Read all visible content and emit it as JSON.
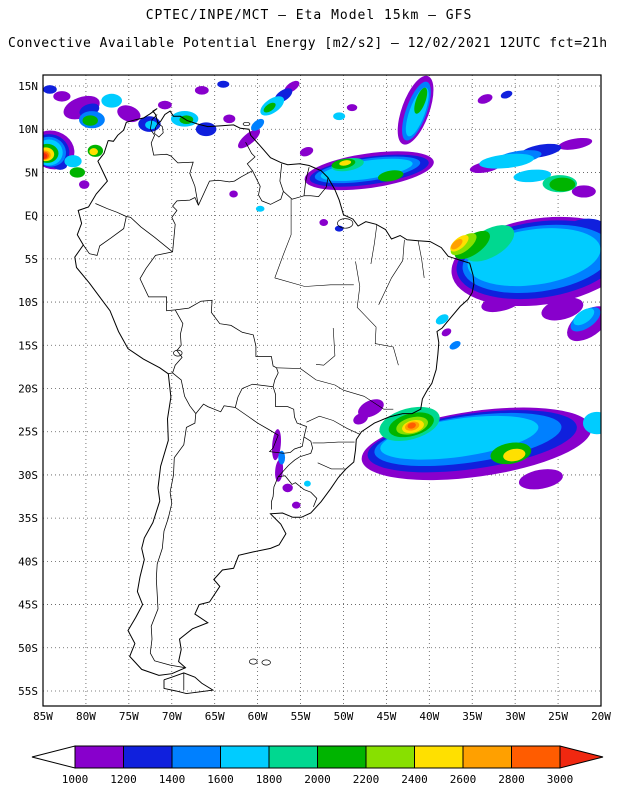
{
  "header": {
    "title": "CPTEC/INPE/MCT —  Eta Model 15km — GFS",
    "subtitle": "Convective Available Potential Energy [m2/s2] — 12/02/2021 12UTC fct=21h"
  },
  "map": {
    "lat_ticks": [
      "15N",
      "10N",
      "5N",
      "EQ",
      "5S",
      "10S",
      "15S",
      "20S",
      "25S",
      "30S",
      "35S",
      "40S",
      "45S",
      "50S",
      "55S"
    ],
    "lon_ticks": [
      "85W",
      "80W",
      "75W",
      "70W",
      "65W",
      "60W",
      "55W",
      "50W",
      "45W",
      "40W",
      "35W",
      "30W",
      "25W",
      "20W"
    ]
  },
  "colorbar": {
    "labels": [
      "1000",
      "1200",
      "1400",
      "1600",
      "1800",
      "2000",
      "2200",
      "2400",
      "2600",
      "2800",
      "3000"
    ],
    "colors": [
      "#8800cc",
      "#1020dd",
      "#0080ff",
      "#00ccff",
      "#00d890",
      "#00b400",
      "#88e000",
      "#ffe000",
      "#ffa000",
      "#ff5c00"
    ],
    "below_min_color": "#ffffff",
    "above_max_color": "#f02810"
  },
  "chart_data": {
    "type": "heatmap",
    "title": "Convective Available Potential Energy",
    "units": "m2/s2",
    "model": "Eta Model 15km — GFS",
    "valid": "12/02/2021 12UTC fct=21h",
    "lon_range": [
      -85,
      -20
    ],
    "lat_range": [
      -55,
      15
    ],
    "scale_values": [
      1000,
      1200,
      1400,
      1600,
      1800,
      2000,
      2200,
      2400,
      2600,
      2800,
      3000
    ],
    "cells_format": "lon,lat,rx_deg,ry_deg,rot_deg,cape_value",
    "cells": [
      [
        -80.5,
        12.5,
        2.2,
        1.2,
        -20,
        1000
      ],
      [
        -79.6,
        12.2,
        1.2,
        0.7,
        -20,
        1200
      ],
      [
        -79.3,
        11.1,
        1.5,
        1.0,
        0,
        1400
      ],
      [
        -79.5,
        11.0,
        0.9,
        0.6,
        0,
        2000
      ],
      [
        -82.8,
        13.8,
        1.0,
        0.6,
        0,
        1000
      ],
      [
        -84.2,
        14.6,
        0.8,
        0.5,
        0,
        1200
      ],
      [
        -77.0,
        13.3,
        1.2,
        0.8,
        0,
        1600
      ],
      [
        -75.0,
        11.8,
        1.4,
        0.9,
        20,
        1000
      ],
      [
        -72.6,
        10.6,
        1.3,
        0.9,
        0,
        1200
      ],
      [
        -72.4,
        10.5,
        0.7,
        0.5,
        0,
        1600
      ],
      [
        -70.8,
        12.8,
        0.8,
        0.5,
        0,
        1000
      ],
      [
        -68.5,
        11.2,
        1.6,
        0.9,
        0,
        1600
      ],
      [
        -68.3,
        11.1,
        0.8,
        0.5,
        0,
        2000
      ],
      [
        -66.0,
        10.0,
        1.2,
        0.8,
        0,
        1200
      ],
      [
        -63.3,
        11.2,
        0.7,
        0.5,
        0,
        1000
      ],
      [
        -66.5,
        14.5,
        0.8,
        0.5,
        0,
        1000
      ],
      [
        -64.0,
        15.2,
        0.7,
        0.4,
        0,
        1200
      ],
      [
        -61.0,
        8.9,
        1.6,
        0.6,
        -40,
        1000
      ],
      [
        -60.0,
        10.5,
        0.9,
        0.5,
        -40,
        1400
      ],
      [
        -58.3,
        12.7,
        1.6,
        0.8,
        -35,
        1600
      ],
      [
        -57.0,
        13.9,
        1.2,
        0.6,
        -35,
        1200
      ],
      [
        -56.0,
        14.9,
        1.0,
        0.5,
        -35,
        1000
      ],
      [
        -58.6,
        12.5,
        0.8,
        0.4,
        -35,
        2000
      ],
      [
        -50.5,
        11.5,
        0.7,
        0.45,
        0,
        1600
      ],
      [
        -49.0,
        12.5,
        0.6,
        0.4,
        0,
        1000
      ],
      [
        -80.2,
        3.6,
        0.6,
        0.5,
        0,
        1000
      ],
      [
        -81.5,
        6.3,
        1.0,
        0.7,
        0,
        1600
      ],
      [
        -81.0,
        5.0,
        0.9,
        0.6,
        0,
        2000
      ],
      [
        -83.0,
        5.8,
        0.8,
        0.5,
        0,
        1200
      ],
      [
        -78.9,
        7.5,
        0.9,
        0.7,
        0,
        2000
      ],
      [
        -79.1,
        7.4,
        0.5,
        0.4,
        0,
        2400
      ],
      [
        -83.9,
        7.6,
        2.6,
        2.2,
        20,
        1000
      ],
      [
        -84.1,
        7.5,
        2.2,
        1.9,
        20,
        1200
      ],
      [
        -84.2,
        7.4,
        1.9,
        1.7,
        20,
        1400
      ],
      [
        -84.3,
        7.3,
        1.6,
        1.5,
        0,
        1600
      ],
      [
        -84.5,
        7.2,
        1.3,
        1.1,
        0,
        2000
      ],
      [
        -84.7,
        7.1,
        1.0,
        0.8,
        0,
        2400
      ],
      [
        -84.8,
        7.0,
        0.7,
        0.55,
        0,
        2600
      ],
      [
        -84.85,
        6.95,
        0.55,
        0.45,
        0,
        2800
      ],
      [
        -84.9,
        6.9,
        0.4,
        0.33,
        0,
        3000
      ],
      [
        -41.6,
        12.2,
        1.6,
        4.2,
        20,
        1000
      ],
      [
        -41.5,
        12.1,
        1.2,
        3.6,
        20,
        1400
      ],
      [
        -41.4,
        12.0,
        0.9,
        3.0,
        20,
        1600
      ],
      [
        -41.0,
        13.3,
        0.55,
        1.6,
        20,
        2000
      ],
      [
        -33.5,
        13.5,
        0.9,
        0.5,
        -20,
        1000
      ],
      [
        -31.0,
        14.0,
        0.7,
        0.4,
        -20,
        1200
      ],
      [
        -47.0,
        5.2,
        7.6,
        2.0,
        -8,
        1000
      ],
      [
        -47.0,
        5.2,
        7.0,
        1.6,
        -8,
        1200
      ],
      [
        -47.2,
        5.3,
        6.2,
        1.3,
        -8,
        1400
      ],
      [
        -47.3,
        5.3,
        5.4,
        1.05,
        -8,
        1600
      ],
      [
        -49.5,
        5.9,
        1.9,
        0.7,
        -10,
        1800
      ],
      [
        -50.0,
        6.0,
        1.4,
        0.55,
        -10,
        2000
      ],
      [
        -44.5,
        4.6,
        1.5,
        0.6,
        -10,
        2000
      ],
      [
        -49.8,
        6.1,
        0.7,
        0.3,
        -10,
        2400
      ],
      [
        -54.3,
        7.4,
        0.8,
        0.5,
        -20,
        1000
      ],
      [
        -33.5,
        5.6,
        1.8,
        0.6,
        -10,
        1000
      ],
      [
        -23.0,
        8.3,
        2.0,
        0.6,
        -10,
        1000
      ],
      [
        -22.0,
        2.8,
        1.4,
        0.7,
        0,
        1000
      ],
      [
        -27.0,
        7.5,
        2.4,
        0.7,
        -10,
        1200
      ],
      [
        -29.5,
        6.8,
        2.6,
        0.7,
        -8,
        1400
      ],
      [
        -31.0,
        6.3,
        3.2,
        0.8,
        -6,
        1600
      ],
      [
        -28.0,
        4.6,
        2.2,
        0.7,
        -5,
        1600
      ],
      [
        -24.8,
        3.7,
        2.0,
        1.0,
        0,
        1800
      ],
      [
        -24.5,
        3.6,
        1.5,
        0.8,
        0,
        2000
      ],
      [
        -27.0,
        -5.3,
        10.5,
        5.0,
        -8,
        1000
      ],
      [
        -27.2,
        -5.1,
        9.7,
        4.4,
        -8,
        1200
      ],
      [
        -27.4,
        -5.0,
        8.8,
        3.8,
        -8,
        1400
      ],
      [
        -27.8,
        -4.8,
        7.8,
        3.2,
        -8,
        1600
      ],
      [
        -33.0,
        -3.2,
        3.2,
        1.6,
        -30,
        1800
      ],
      [
        -35.0,
        -3.4,
        2.4,
        1.1,
        -35,
        2000
      ],
      [
        -36.0,
        -3.3,
        1.8,
        0.8,
        -38,
        2200
      ],
      [
        -36.5,
        -3.2,
        1.3,
        0.6,
        -40,
        2400
      ],
      [
        -36.8,
        -3.3,
        0.8,
        0.4,
        -40,
        2600
      ],
      [
        -21.5,
        -12.5,
        2.8,
        1.5,
        -35,
        1000
      ],
      [
        -21.8,
        -12.0,
        2.0,
        1.0,
        -35,
        1400
      ],
      [
        -22.0,
        -11.7,
        1.4,
        0.7,
        -35,
        1600
      ],
      [
        -31.5,
        -10.0,
        2.5,
        1.0,
        -15,
        1000
      ],
      [
        -24.5,
        -10.8,
        2.5,
        1.2,
        -15,
        1000
      ],
      [
        -22.0,
        -1.8,
        2.6,
        1.4,
        -10,
        1200
      ],
      [
        -38.5,
        -12.0,
        0.8,
        0.5,
        -30,
        1600
      ],
      [
        -38.0,
        -13.5,
        0.6,
        0.4,
        -30,
        1000
      ],
      [
        -37.0,
        -15.0,
        0.7,
        0.4,
        -30,
        1400
      ],
      [
        -62.8,
        2.5,
        0.5,
        0.4,
        0,
        1000
      ],
      [
        -59.7,
        0.8,
        0.5,
        0.35,
        0,
        1600
      ],
      [
        -52.3,
        -0.8,
        0.5,
        0.4,
        0,
        1000
      ],
      [
        -50.5,
        -1.5,
        0.5,
        0.35,
        0,
        1200
      ],
      [
        -34.5,
        -26.4,
        13.5,
        3.8,
        -8,
        1000
      ],
      [
        -35.0,
        -26.1,
        12.3,
        3.2,
        -8,
        1200
      ],
      [
        -35.5,
        -25.9,
        11.0,
        2.7,
        -8,
        1400
      ],
      [
        -36.5,
        -25.7,
        9.3,
        2.2,
        -8,
        1600
      ],
      [
        -42.3,
        -24.1,
        3.6,
        1.8,
        -15,
        1800
      ],
      [
        -42.1,
        -24.2,
        2.7,
        1.3,
        -15,
        2000
      ],
      [
        -42.0,
        -24.3,
        1.9,
        0.95,
        -15,
        2200
      ],
      [
        -41.9,
        -24.4,
        1.3,
        0.7,
        -15,
        2400
      ],
      [
        -42.0,
        -24.35,
        0.85,
        0.5,
        -15,
        2600
      ],
      [
        -42.05,
        -24.3,
        0.5,
        0.33,
        -15,
        2800
      ],
      [
        -30.5,
        -27.5,
        2.4,
        1.2,
        -10,
        2000
      ],
      [
        -30.1,
        -27.7,
        1.3,
        0.7,
        -10,
        2400
      ],
      [
        -46.8,
        -22.3,
        1.6,
        0.9,
        -25,
        1000
      ],
      [
        -48.0,
        -23.5,
        0.9,
        0.6,
        -25,
        1000
      ],
      [
        -44.5,
        -28.0,
        2.2,
        1.0,
        -15,
        1000
      ],
      [
        -37.5,
        -29.3,
        2.6,
        1.0,
        -10,
        1000
      ],
      [
        -27.0,
        -30.5,
        2.6,
        1.1,
        -10,
        1000
      ],
      [
        -20.5,
        -24.0,
        1.6,
        1.3,
        0,
        1600
      ],
      [
        -57.8,
        -26.5,
        0.5,
        1.8,
        5,
        1000
      ],
      [
        -57.5,
        -29.5,
        0.45,
        1.3,
        5,
        1000
      ],
      [
        -57.2,
        -28.0,
        0.4,
        0.8,
        0,
        1400
      ],
      [
        -56.5,
        -31.5,
        0.6,
        0.5,
        0,
        1000
      ],
      [
        -55.5,
        -33.5,
        0.5,
        0.4,
        0,
        1000
      ],
      [
        -54.2,
        -31.0,
        0.4,
        0.35,
        0,
        1600
      ]
    ]
  }
}
